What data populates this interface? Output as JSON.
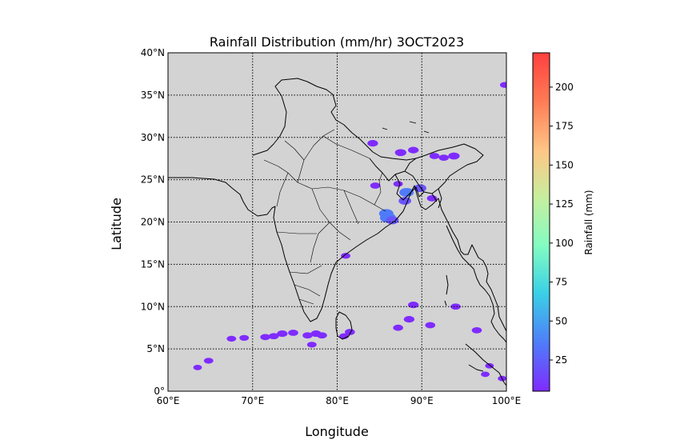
{
  "chart_data": {
    "type": "heatmap",
    "title": "Rainfall Distribution (mm/hr) 3OCT2023",
    "xlabel": "Longitude",
    "ylabel": "Latitude",
    "xlim": [
      60,
      100
    ],
    "ylim": [
      0,
      40
    ],
    "x_ticks": [
      {
        "value": 60,
        "label": "60°E"
      },
      {
        "value": 70,
        "label": "70°E"
      },
      {
        "value": 80,
        "label": "80°E"
      },
      {
        "value": 90,
        "label": "90°E"
      },
      {
        "value": 100,
        "label": "100°E"
      }
    ],
    "y_ticks": [
      {
        "value": 0,
        "label": "0°"
      },
      {
        "value": 5,
        "label": "5°N"
      },
      {
        "value": 10,
        "label": "10°N"
      },
      {
        "value": 15,
        "label": "15°N"
      },
      {
        "value": 20,
        "label": "20°N"
      },
      {
        "value": 25,
        "label": "25°N"
      },
      {
        "value": 30,
        "label": "30°N"
      },
      {
        "value": 35,
        "label": "35°N"
      },
      {
        "value": 40,
        "label": "40°N"
      }
    ],
    "grid": true,
    "background_color": "#d3d3d3",
    "colorbar": {
      "label": "Rainfall (mm)",
      "colormap": "rainbow",
      "range": [
        5,
        222
      ],
      "ticks": [
        25,
        50,
        75,
        100,
        125,
        150,
        175,
        200
      ],
      "colors": [
        "#7f2bff",
        "#4f7bf9",
        "#3ad1e6",
        "#83fcc2",
        "#d0e9a1",
        "#ffb67c",
        "#ff5c44",
        "#ff0000"
      ]
    },
    "rain_cells": [
      {
        "lon": 86.0,
        "lat": 20.5,
        "value": 40
      },
      {
        "lon": 85.8,
        "lat": 21.0,
        "value": 30
      },
      {
        "lon": 86.5,
        "lat": 20.2,
        "value": 22
      },
      {
        "lon": 88.2,
        "lat": 23.5,
        "value": 30
      },
      {
        "lon": 88.0,
        "lat": 22.5,
        "value": 20
      },
      {
        "lon": 89.8,
        "lat": 24.0,
        "value": 20
      },
      {
        "lon": 87.5,
        "lat": 28.2,
        "value": 15
      },
      {
        "lon": 89.0,
        "lat": 28.5,
        "value": 12
      },
      {
        "lon": 84.2,
        "lat": 29.3,
        "value": 12
      },
      {
        "lon": 91.5,
        "lat": 27.8,
        "value": 10
      },
      {
        "lon": 93.8,
        "lat": 27.8,
        "value": 15
      },
      {
        "lon": 92.6,
        "lat": 27.6,
        "value": 10
      },
      {
        "lon": 84.5,
        "lat": 24.3,
        "value": 10
      },
      {
        "lon": 87.2,
        "lat": 24.5,
        "value": 8
      },
      {
        "lon": 91.2,
        "lat": 22.8,
        "value": 10
      },
      {
        "lon": 81.0,
        "lat": 16.0,
        "value": 8
      },
      {
        "lon": 89.0,
        "lat": 10.2,
        "value": 12
      },
      {
        "lon": 88.5,
        "lat": 8.5,
        "value": 12
      },
      {
        "lon": 87.2,
        "lat": 7.5,
        "value": 10
      },
      {
        "lon": 94.0,
        "lat": 10.0,
        "value": 10
      },
      {
        "lon": 91.0,
        "lat": 7.8,
        "value": 10
      },
      {
        "lon": 96.5,
        "lat": 7.2,
        "value": 10
      },
      {
        "lon": 81.5,
        "lat": 7.0,
        "value": 10
      },
      {
        "lon": 80.8,
        "lat": 6.5,
        "value": 8
      },
      {
        "lon": 77.5,
        "lat": 6.8,
        "value": 12
      },
      {
        "lon": 78.2,
        "lat": 6.6,
        "value": 10
      },
      {
        "lon": 76.5,
        "lat": 6.6,
        "value": 10
      },
      {
        "lon": 73.5,
        "lat": 6.8,
        "value": 12
      },
      {
        "lon": 72.5,
        "lat": 6.5,
        "value": 10
      },
      {
        "lon": 71.5,
        "lat": 6.4,
        "value": 10
      },
      {
        "lon": 74.8,
        "lat": 6.9,
        "value": 10
      },
      {
        "lon": 77.0,
        "lat": 5.5,
        "value": 8
      },
      {
        "lon": 69.0,
        "lat": 6.3,
        "value": 8
      },
      {
        "lon": 67.5,
        "lat": 6.2,
        "value": 8
      },
      {
        "lon": 64.8,
        "lat": 3.6,
        "value": 8
      },
      {
        "lon": 63.5,
        "lat": 2.8,
        "value": 6
      },
      {
        "lon": 98.0,
        "lat": 3.0,
        "value": 6
      },
      {
        "lon": 99.5,
        "lat": 1.5,
        "value": 6
      },
      {
        "lon": 99.8,
        "lat": 36.2,
        "value": 8
      },
      {
        "lon": 97.5,
        "lat": 2.0,
        "value": 6
      }
    ]
  }
}
